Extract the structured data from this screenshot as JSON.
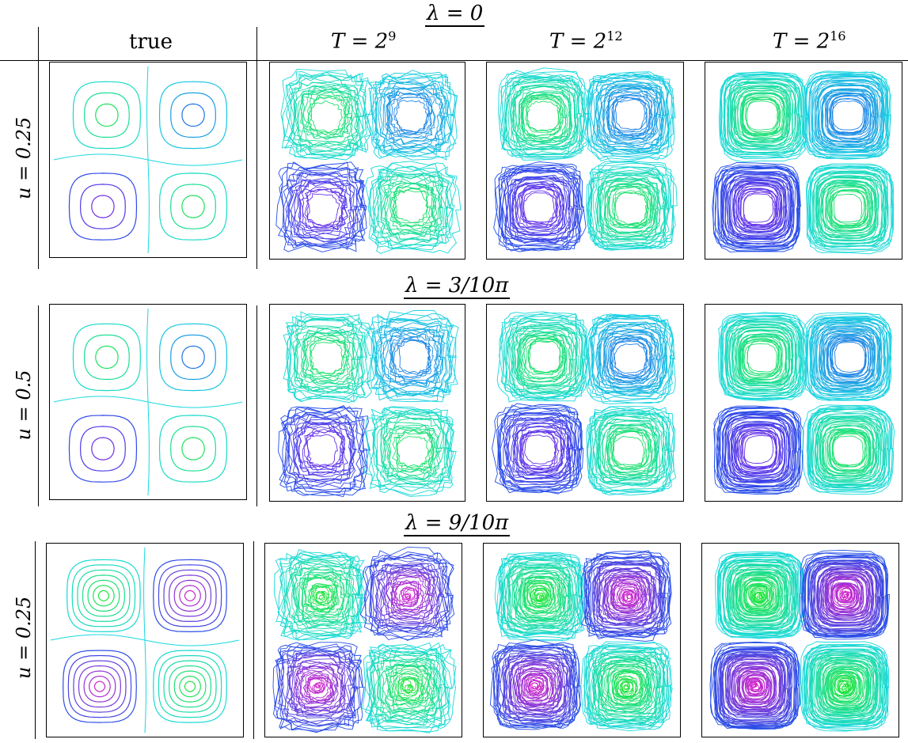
{
  "columns": {
    "true": "true",
    "t1": {
      "base": "T = 2",
      "exp": "9"
    },
    "t2": {
      "base": "T = 2",
      "exp": "12"
    },
    "t3": {
      "base": "T = 2",
      "exp": "16"
    }
  },
  "sections": [
    {
      "lambda_label": "λ = 0",
      "row_label": "u = 0.25",
      "style": "sparse"
    },
    {
      "lambda_label": "λ = 3/10π",
      "row_label": "u = 0.5",
      "style": "mid"
    },
    {
      "lambda_label": "λ = 9/10π",
      "row_label": "u = 0.25",
      "style": "dense"
    }
  ],
  "colors": {
    "green": "#22e62a",
    "cyan": "#18d8e0",
    "blue": "#2050e8",
    "purple": "#9020e8",
    "magenta": "#e020c8"
  }
}
